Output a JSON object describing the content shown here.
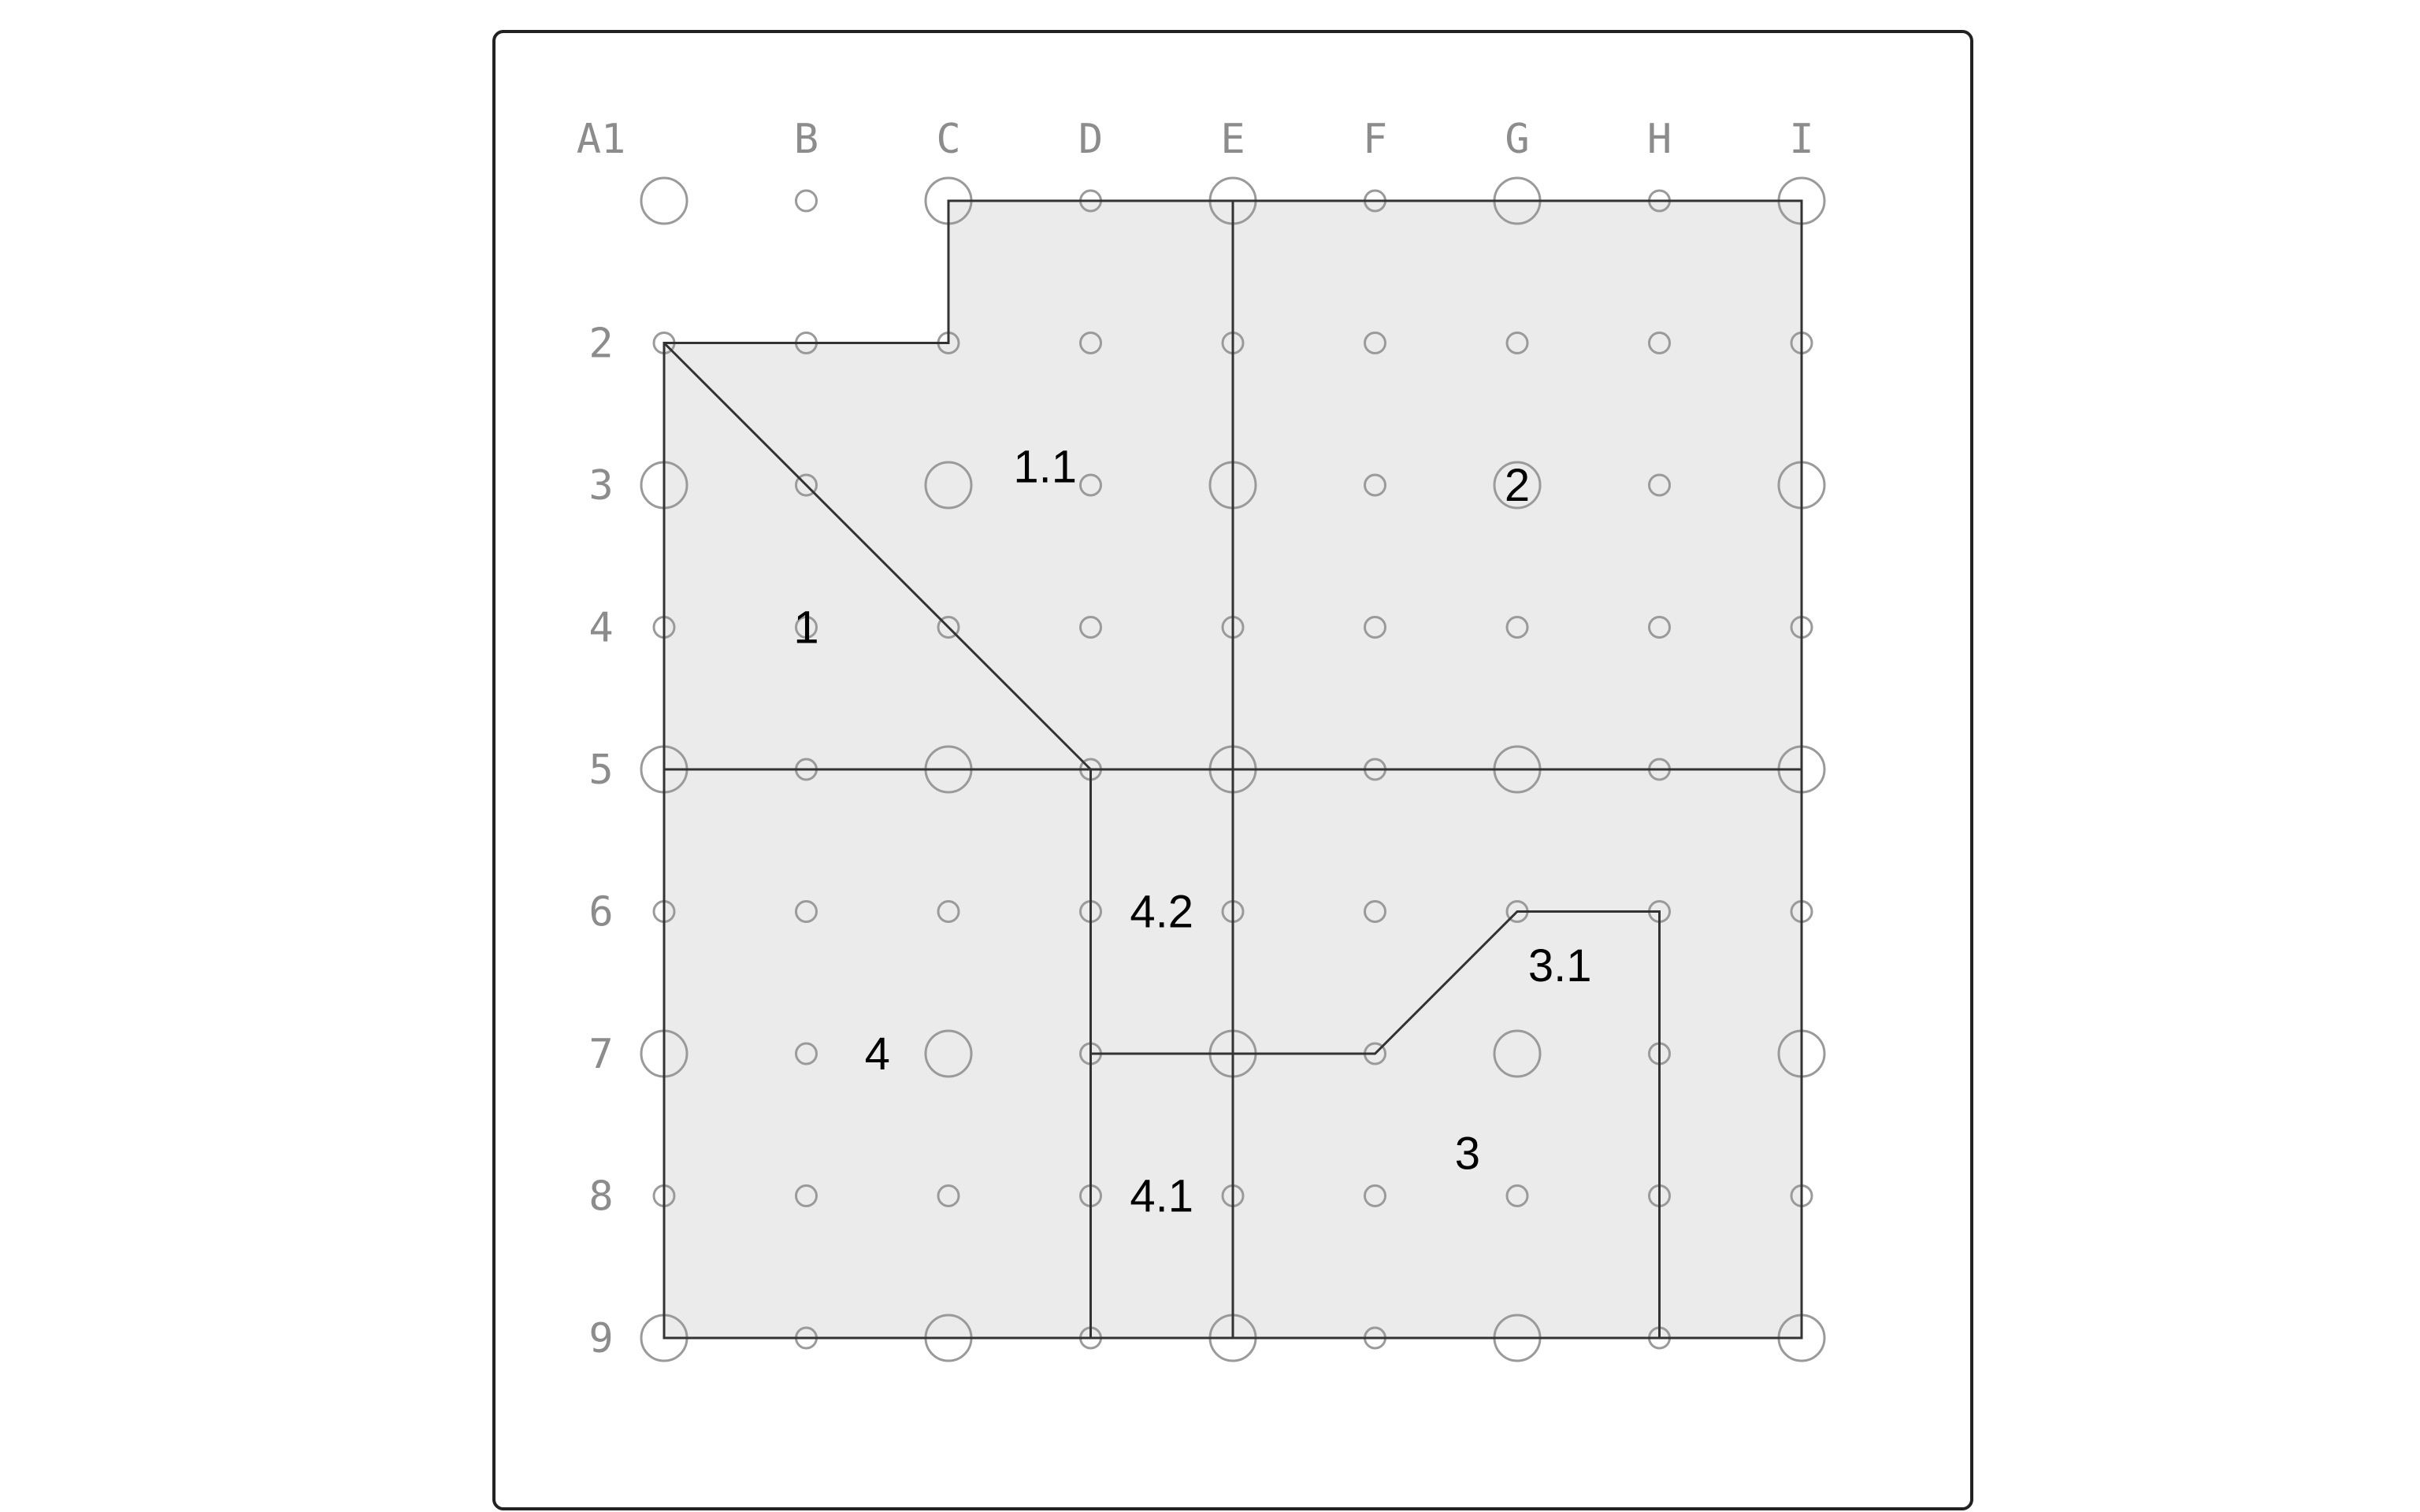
{
  "grid": {
    "column_labels": [
      "A1",
      "B",
      "C",
      "D",
      "E",
      "F",
      "G",
      "H",
      "I"
    ],
    "row_labels": [
      "",
      "2",
      "3",
      "4",
      "5",
      "6",
      "7",
      "8",
      "9"
    ],
    "major_interval": 2,
    "colors": {
      "pin": "#9a9a9a",
      "label": "#8c8c8c",
      "region_fill": "#ebebeb",
      "edge": "#333333"
    }
  },
  "regions": [
    {
      "label": "1",
      "label_at": [
        1,
        3
      ]
    },
    {
      "label": "1.1",
      "label_at": [
        2.68,
        1.87
      ]
    },
    {
      "label": "2",
      "label_at": [
        6,
        2
      ]
    },
    {
      "label": "3",
      "label_at": [
        5.65,
        6.7
      ]
    },
    {
      "label": "3.1",
      "label_at": [
        6.3,
        5.38
      ]
    },
    {
      "label": "4",
      "label_at": [
        1.5,
        6
      ]
    },
    {
      "label": "4.1",
      "label_at": [
        3.5,
        7
      ]
    },
    {
      "label": "4.2",
      "label_at": [
        3.5,
        5
      ]
    }
  ],
  "outline": [
    [
      2,
      0
    ],
    [
      8,
      0
    ],
    [
      8,
      8
    ],
    [
      0,
      8
    ],
    [
      0,
      1
    ],
    [
      2,
      1
    ]
  ],
  "edges": [
    [
      [
        0,
        1
      ],
      [
        3,
        4
      ]
    ],
    [
      [
        4,
        0
      ],
      [
        4,
        8
      ]
    ],
    [
      [
        0,
        4
      ],
      [
        8,
        4
      ]
    ],
    [
      [
        3,
        4
      ],
      [
        3,
        8
      ]
    ],
    [
      [
        3,
        6
      ],
      [
        5,
        6
      ],
      [
        6,
        5
      ],
      [
        7,
        5
      ],
      [
        7,
        8
      ]
    ]
  ]
}
